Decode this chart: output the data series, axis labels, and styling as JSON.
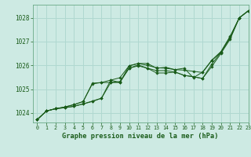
{
  "title": "Graphe pression niveau de la mer (hPa)",
  "bg_color": "#cdeae3",
  "grid_color": "#b0d8d0",
  "line_color": "#1a5c1a",
  "marker_color": "#1a5c1a",
  "xlim": [
    -0.5,
    23
  ],
  "ylim": [
    1023.6,
    1028.55
  ],
  "yticks": [
    1024,
    1025,
    1026,
    1027,
    1028
  ],
  "xticks": [
    0,
    1,
    2,
    3,
    4,
    5,
    6,
    7,
    8,
    9,
    10,
    11,
    12,
    13,
    14,
    15,
    16,
    17,
    18,
    19,
    20,
    21,
    22,
    23
  ],
  "series": [
    [
      1023.72,
      1024.08,
      1024.18,
      1024.22,
      1024.28,
      1024.38,
      1024.48,
      1024.62,
      1025.38,
      1025.28,
      1025.98,
      1026.08,
      1026.0,
      1025.9,
      1025.88,
      1025.82,
      1025.8,
      1025.75,
      1025.7,
      1026.2,
      1026.55,
      1027.2,
      1028.0,
      1028.3
    ],
    [
      1023.72,
      1024.08,
      1024.18,
      1024.22,
      1024.28,
      1024.38,
      1024.5,
      1024.62,
      1025.28,
      1025.28,
      1025.88,
      1025.98,
      1025.88,
      1025.78,
      1025.78,
      1025.72,
      1025.58,
      1025.52,
      1025.45,
      1025.95,
      1026.5,
      1027.1,
      1028.0,
      1028.3
    ],
    [
      1023.72,
      1024.08,
      1024.18,
      1024.25,
      1024.35,
      1024.48,
      1025.25,
      1025.28,
      1025.28,
      1025.32,
      1025.88,
      1026.02,
      1025.88,
      1025.68,
      1025.68,
      1025.72,
      1025.58,
      1025.52,
      1025.45,
      1026.05,
      1026.55,
      1027.15,
      1028.0,
      1028.3
    ],
    [
      1023.72,
      1024.08,
      1024.18,
      1024.25,
      1024.35,
      1024.48,
      1025.22,
      1025.28,
      1025.38,
      1025.48,
      1025.98,
      1026.08,
      1026.08,
      1025.88,
      1025.92,
      1025.82,
      1025.88,
      1025.48,
      1025.72,
      1026.22,
      1026.58,
      1027.22,
      1028.0,
      1028.3
    ]
  ]
}
